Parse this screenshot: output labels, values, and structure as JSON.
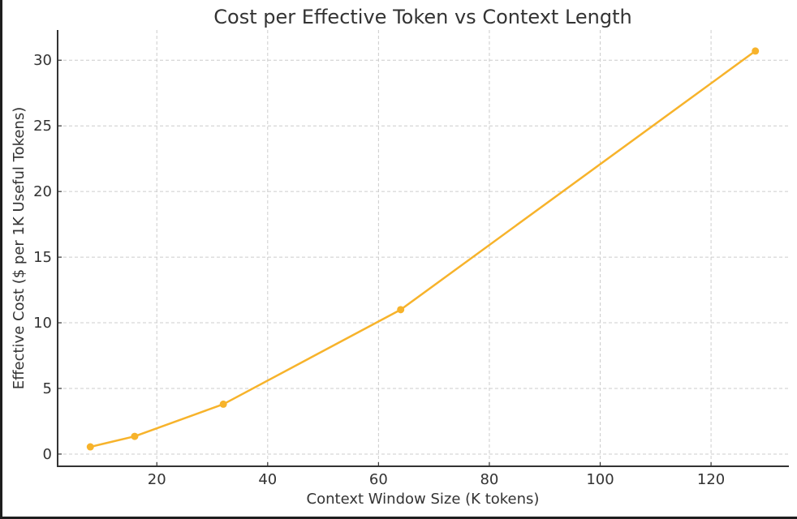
{
  "chart_data": {
    "type": "line",
    "title": "Cost per Effective Token vs Context Length",
    "xlabel": "Context Window Size (K tokens)",
    "ylabel": "Effective Cost ($ per 1K Useful Tokens)",
    "x": [
      8,
      16,
      32,
      64,
      128
    ],
    "series": [
      {
        "name": "Effective Cost",
        "values": [
          0.55,
          1.35,
          3.8,
          11.0,
          30.7
        ],
        "color": "#F7B32B",
        "marker": "circle"
      }
    ],
    "xticks": [
      20,
      40,
      60,
      80,
      100,
      120
    ],
    "yticks": [
      0,
      5,
      10,
      15,
      20,
      25,
      30
    ],
    "xlim": [
      2.1,
      133.9
    ],
    "ylim": [
      -0.93,
      32.3
    ],
    "grid": true,
    "grid_style": "dashed",
    "legend": null
  },
  "colors": {
    "line": "#F7B32B",
    "text": "#333333",
    "grid": "#cccccc",
    "spine": "#333333"
  }
}
